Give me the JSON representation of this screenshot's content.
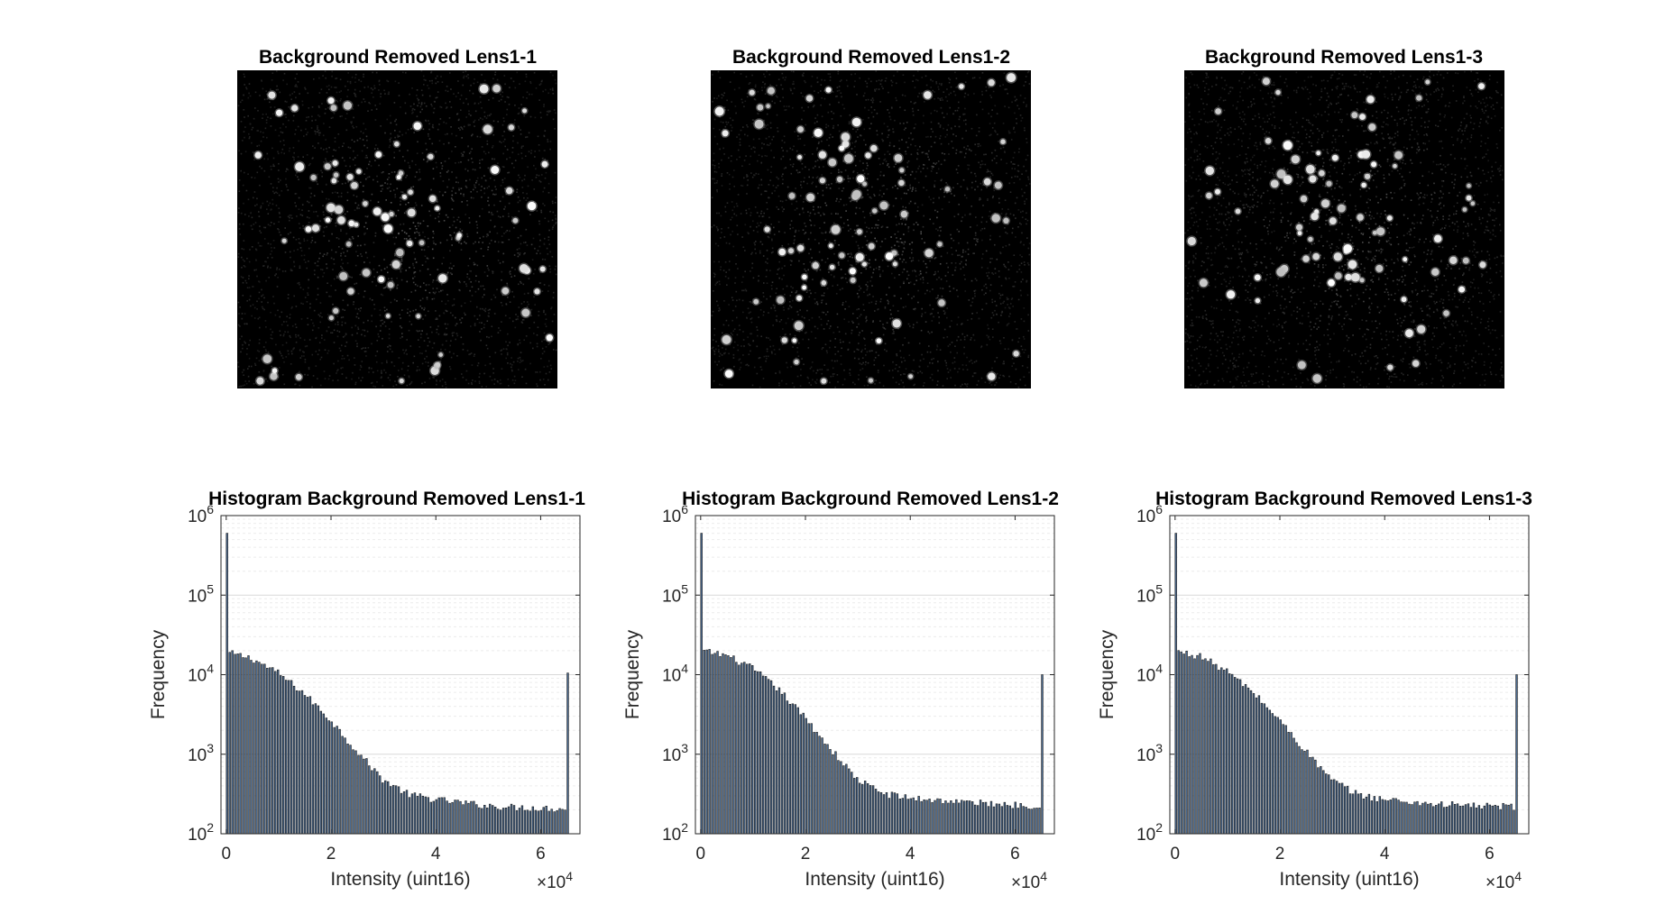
{
  "figure": {
    "image_panels": [
      {
        "title": "Background Removed Lens1-1",
        "seed": 11
      },
      {
        "title": "Background Removed Lens1-2",
        "seed": 23
      },
      {
        "title": "Background Removed Lens1-3",
        "seed": 37
      }
    ],
    "bar_color": "#4a6a90",
    "bar_edge_color": "#1a1a1a"
  },
  "chart_data": [
    {
      "type": "bar",
      "title": "Histogram Background Removed Lens1-1",
      "xlabel": "Intensity (uint16)",
      "ylabel": "Frequency",
      "x_exponent_label": "×10",
      "x_exponent": "4",
      "xlim": [
        -1000,
        67500
      ],
      "xticks": [
        0,
        2,
        4,
        6
      ],
      "x_tick_scale": 10000,
      "yscale": "log",
      "ylim": [
        100,
        1000000
      ],
      "yticks": [
        {
          "base": "10",
          "exp": "2",
          "value": 100
        },
        {
          "base": "10",
          "exp": "3",
          "value": 1000
        },
        {
          "base": "10",
          "exp": "4",
          "value": 10000
        },
        {
          "base": "10",
          "exp": "5",
          "value": 100000
        },
        {
          "base": "10",
          "exp": "6",
          "value": 1000000
        }
      ],
      "grid": true,
      "bins": 128,
      "bin_width": 512,
      "first_bin_value": 600000,
      "last_bin_value": 10500,
      "curve_points": [
        [
          512,
          18800
        ],
        [
          5000,
          16000
        ],
        [
          10000,
          10500
        ],
        [
          15000,
          5800
        ],
        [
          20000,
          2700
        ],
        [
          25000,
          1100
        ],
        [
          30000,
          480
        ],
        [
          35000,
          310
        ],
        [
          40000,
          270
        ],
        [
          45000,
          245
        ],
        [
          50000,
          225
        ],
        [
          55000,
          215
        ],
        [
          60000,
          210
        ],
        [
          65000,
          205
        ]
      ]
    },
    {
      "type": "bar",
      "title": "Histogram Background Removed Lens1-2",
      "xlabel": "Intensity (uint16)",
      "ylabel": "Frequency",
      "x_exponent_label": "×10",
      "x_exponent": "4",
      "xlim": [
        -1000,
        67500
      ],
      "xticks": [
        0,
        2,
        4,
        6
      ],
      "x_tick_scale": 10000,
      "yscale": "log",
      "ylim": [
        100,
        1000000
      ],
      "yticks": [
        {
          "base": "10",
          "exp": "2",
          "value": 100
        },
        {
          "base": "10",
          "exp": "3",
          "value": 1000
        },
        {
          "base": "10",
          "exp": "4",
          "value": 10000
        },
        {
          "base": "10",
          "exp": "5",
          "value": 100000
        },
        {
          "base": "10",
          "exp": "6",
          "value": 1000000
        }
      ],
      "grid": true,
      "bins": 128,
      "bin_width": 512,
      "first_bin_value": 600000,
      "last_bin_value": 10000,
      "curve_points": [
        [
          512,
          19800
        ],
        [
          5000,
          17500
        ],
        [
          10000,
          12000
        ],
        [
          15000,
          6500
        ],
        [
          20000,
          2900
        ],
        [
          25000,
          1150
        ],
        [
          30000,
          480
        ],
        [
          35000,
          320
        ],
        [
          40000,
          280
        ],
        [
          45000,
          265
        ],
        [
          50000,
          250
        ],
        [
          55000,
          240
        ],
        [
          60000,
          230
        ],
        [
          65000,
          225
        ]
      ]
    },
    {
      "type": "bar",
      "title": "Histogram Background Removed Lens1-3",
      "xlabel": "Intensity (uint16)",
      "ylabel": "Frequency",
      "x_exponent_label": "×10",
      "x_exponent": "4",
      "xlim": [
        -1000,
        67500
      ],
      "xticks": [
        0,
        2,
        4,
        6
      ],
      "x_tick_scale": 10000,
      "yscale": "log",
      "ylim": [
        100,
        1000000
      ],
      "yticks": [
        {
          "base": "10",
          "exp": "2",
          "value": 100
        },
        {
          "base": "10",
          "exp": "3",
          "value": 1000
        },
        {
          "base": "10",
          "exp": "4",
          "value": 10000
        },
        {
          "base": "10",
          "exp": "5",
          "value": 100000
        },
        {
          "base": "10",
          "exp": "6",
          "value": 1000000
        }
      ],
      "grid": true,
      "bins": 128,
      "bin_width": 512,
      "first_bin_value": 600000,
      "last_bin_value": 10000,
      "curve_points": [
        [
          512,
          19500
        ],
        [
          5000,
          17000
        ],
        [
          10000,
          11000
        ],
        [
          15000,
          6000
        ],
        [
          20000,
          2700
        ],
        [
          25000,
          1100
        ],
        [
          30000,
          470
        ],
        [
          35000,
          310
        ],
        [
          40000,
          270
        ],
        [
          45000,
          250
        ],
        [
          50000,
          235
        ],
        [
          55000,
          228
        ],
        [
          60000,
          222
        ],
        [
          65000,
          218
        ]
      ]
    }
  ]
}
